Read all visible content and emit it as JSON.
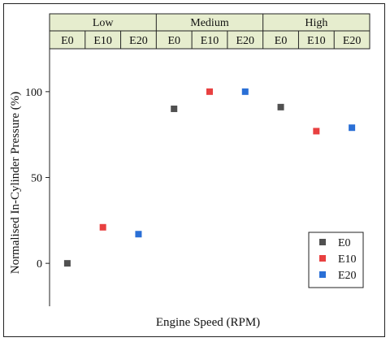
{
  "chart_data": {
    "type": "scatter",
    "title": "",
    "xlabel": "Engine Speed (RPM)",
    "ylabel": "Normalised In-Cylinder Pressure (%)",
    "ylim": [
      -25,
      125
    ],
    "yticks": [
      0,
      50,
      100
    ],
    "grid": false,
    "legend_position": "bottom-right",
    "groups": [
      "Low",
      "Medium",
      "High"
    ],
    "categories": [
      "E0",
      "E10",
      "E20",
      "E0",
      "E10",
      "E20",
      "E0",
      "E10",
      "E20"
    ],
    "series": [
      {
        "name": "E0",
        "color": "#505050",
        "x": [
          1,
          4,
          7
        ],
        "values": [
          0,
          90,
          91
        ]
      },
      {
        "name": "E10",
        "color": "#e84040",
        "x": [
          2,
          5,
          8
        ],
        "values": [
          21,
          100,
          77
        ]
      },
      {
        "name": "E20",
        "color": "#2a6fd6",
        "x": [
          3,
          6,
          9
        ],
        "values": [
          17,
          100,
          79
        ]
      }
    ],
    "header_bg": "#e6edce"
  }
}
